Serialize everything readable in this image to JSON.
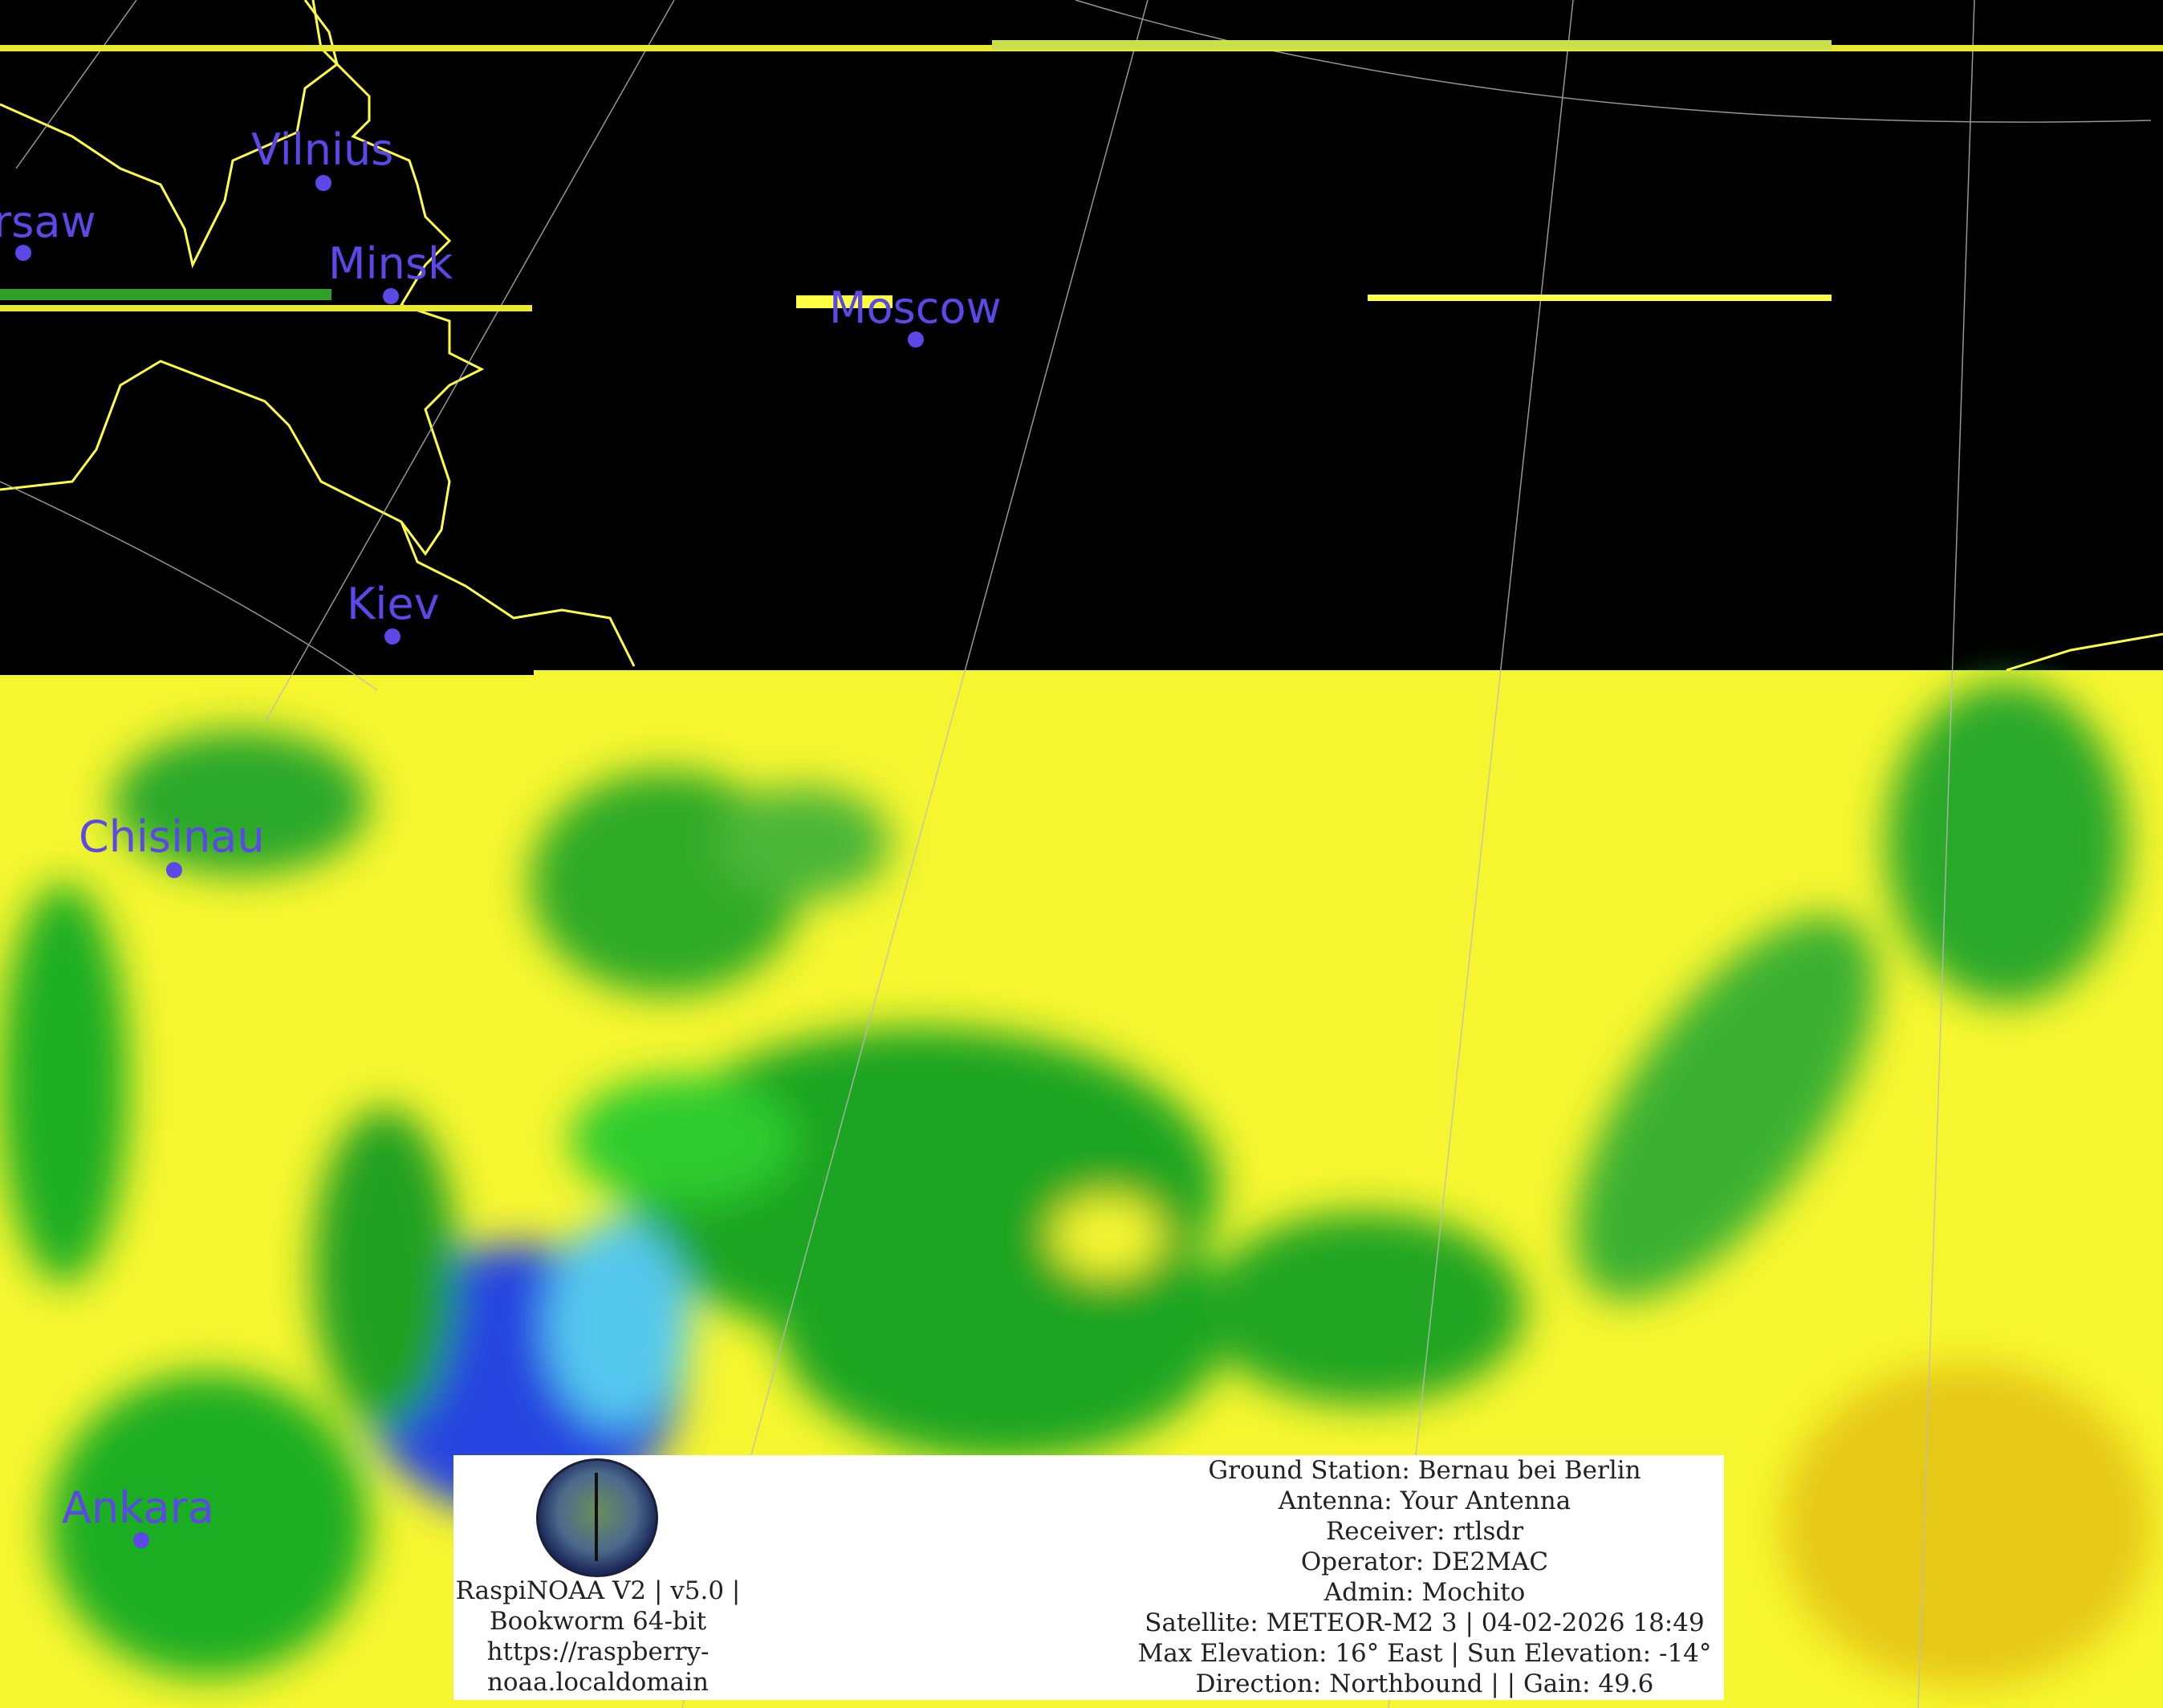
{
  "cities": [
    {
      "name": "Vilnius"
    },
    {
      "name": "rsaw"
    },
    {
      "name": "Minsk"
    },
    {
      "name": "Moscow"
    },
    {
      "name": "Kiev"
    },
    {
      "name": "Chisinau"
    },
    {
      "name": "Ankara"
    }
  ],
  "info_box": {
    "left_lines": [
      "RaspiNOAA V2 | v5.0 |",
      "Bookworm 64-bit",
      "https://raspberry-",
      "noaa.localdomain"
    ],
    "right_lines": [
      "Ground Station: Bernau bei Berlin",
      "Antenna: Your Antenna",
      "Receiver: rtlsdr",
      "Operator: DE2MAC",
      "Admin: Mochito",
      "Satellite: METEOR-M2 3 | 04-02-2026 18:49",
      "Max Elevation: 16° East | Sun Elevation: -14°",
      "Direction: Northbound | | Gain: 49.6"
    ]
  },
  "colors": {
    "cloud": "#ffff33",
    "land": "#1fae22",
    "water": "#3a5cf0",
    "border": "#ffff44",
    "label": "#5b48e6"
  }
}
